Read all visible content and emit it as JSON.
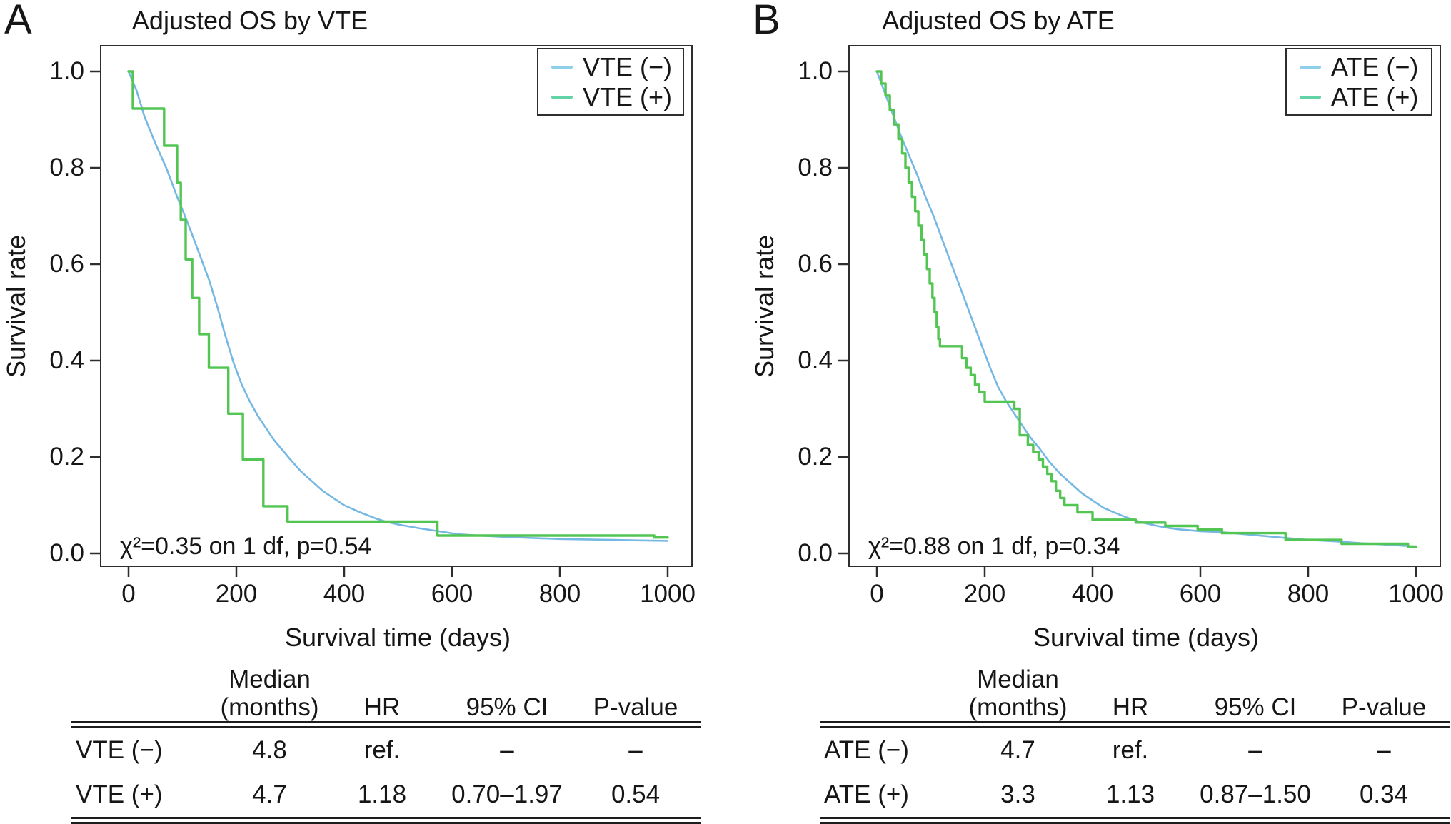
{
  "figure": {
    "background": "#ffffff",
    "axis_color": "#2e2e2e",
    "text_color": "#161616"
  },
  "chart_data": [
    {
      "type": "line",
      "panel_letter": "A",
      "title": "Adjusted OS by VTE",
      "xlabel": "Survival time (days)",
      "ylabel": "Survival rate",
      "xlim": [
        0,
        1000
      ],
      "ylim": [
        0,
        1
      ],
      "xticks": [
        0,
        200,
        400,
        600,
        800,
        1000
      ],
      "yticks": [
        "1.0",
        "0.8",
        "0.6",
        "0.4",
        "0.2",
        "0.0"
      ],
      "grid": false,
      "legend_position": "top-right",
      "stat_annotation": "χ²=0.35 on 1 df, p=0.54",
      "series": [
        {
          "name": "VTE (−)",
          "style": "smooth",
          "color": "#76b8e4",
          "legend_swatch_color": "#8ed0ea",
          "points": [
            [
              0,
              1.0
            ],
            [
              15,
              0.96
            ],
            [
              30,
              0.905
            ],
            [
              50,
              0.85
            ],
            [
              70,
              0.8
            ],
            [
              90,
              0.74
            ],
            [
              110,
              0.685
            ],
            [
              130,
              0.625
            ],
            [
              150,
              0.565
            ],
            [
              165,
              0.51
            ],
            [
              180,
              0.45
            ],
            [
              195,
              0.395
            ],
            [
              210,
              0.35
            ],
            [
              225,
              0.315
            ],
            [
              240,
              0.285
            ],
            [
              255,
              0.26
            ],
            [
              270,
              0.235
            ],
            [
              285,
              0.215
            ],
            [
              300,
              0.195
            ],
            [
              320,
              0.17
            ],
            [
              340,
              0.15
            ],
            [
              360,
              0.13
            ],
            [
              380,
              0.115
            ],
            [
              400,
              0.1
            ],
            [
              430,
              0.085
            ],
            [
              460,
              0.072
            ],
            [
              474,
              0.067
            ],
            [
              500,
              0.06
            ],
            [
              540,
              0.052
            ],
            [
              575,
              0.046
            ],
            [
              610,
              0.04
            ],
            [
              650,
              0.037
            ],
            [
              700,
              0.034
            ],
            [
              750,
              0.032
            ],
            [
              800,
              0.03
            ],
            [
              850,
              0.029
            ],
            [
              900,
              0.028
            ],
            [
              950,
              0.027
            ],
            [
              1000,
              0.026
            ]
          ]
        },
        {
          "name": "VTE (+)",
          "style": "step",
          "color": "#53c553",
          "legend_swatch_color": "#63d2a6",
          "points": [
            [
              0,
              1.0
            ],
            [
              8,
              0.923
            ],
            [
              66,
              0.846
            ],
            [
              90,
              0.769
            ],
            [
              97,
              0.692
            ],
            [
              106,
              0.61
            ],
            [
              118,
              0.53
            ],
            [
              131,
              0.455
            ],
            [
              149,
              0.385
            ],
            [
              185,
              0.29
            ],
            [
              212,
              0.195
            ],
            [
              250,
              0.098
            ],
            [
              295,
              0.066
            ],
            [
              573,
              0.037
            ],
            [
              975,
              0.033
            ]
          ]
        }
      ],
      "table": {
        "headers": [
          "",
          "Median\n(months)",
          "HR",
          "95% CI",
          "P-value"
        ],
        "rows": [
          [
            "VTE (−)",
            "4.8",
            "ref.",
            "–",
            "–"
          ],
          [
            "VTE (+)",
            "4.7",
            "1.18",
            "0.70–1.97",
            "0.54"
          ]
        ]
      }
    },
    {
      "type": "line",
      "panel_letter": "B",
      "title": "Adjusted OS by ATE",
      "xlabel": "Survival time (days)",
      "ylabel": "Survival rate",
      "xlim": [
        0,
        1000
      ],
      "ylim": [
        0,
        1
      ],
      "xticks": [
        0,
        200,
        400,
        600,
        800,
        1000
      ],
      "yticks": [
        "1.0",
        "0.8",
        "0.6",
        "0.4",
        "0.2",
        "0.0"
      ],
      "grid": false,
      "legend_position": "top-right",
      "stat_annotation": "χ²=0.88 on 1 df, p=0.34",
      "series": [
        {
          "name": "ATE (−)",
          "style": "smooth",
          "color": "#76b8e4",
          "legend_swatch_color": "#8ed0ea",
          "points": [
            [
              0,
              1.0
            ],
            [
              15,
              0.955
            ],
            [
              30,
              0.91
            ],
            [
              45,
              0.865
            ],
            [
              60,
              0.825
            ],
            [
              75,
              0.785
            ],
            [
              90,
              0.74
            ],
            [
              105,
              0.7
            ],
            [
              120,
              0.655
            ],
            [
              135,
              0.61
            ],
            [
              150,
              0.565
            ],
            [
              165,
              0.52
            ],
            [
              180,
              0.475
            ],
            [
              195,
              0.43
            ],
            [
              210,
              0.385
            ],
            [
              225,
              0.345
            ],
            [
              240,
              0.315
            ],
            [
              255,
              0.29
            ],
            [
              270,
              0.265
            ],
            [
              285,
              0.24
            ],
            [
              300,
              0.22
            ],
            [
              320,
              0.19
            ],
            [
              340,
              0.165
            ],
            [
              360,
              0.145
            ],
            [
              380,
              0.125
            ],
            [
              400,
              0.11
            ],
            [
              420,
              0.095
            ],
            [
              440,
              0.085
            ],
            [
              460,
              0.076
            ],
            [
              480,
              0.068
            ],
            [
              500,
              0.062
            ],
            [
              520,
              0.057
            ],
            [
              540,
              0.053
            ],
            [
              560,
              0.05
            ],
            [
              580,
              0.048
            ],
            [
              600,
              0.046
            ],
            [
              620,
              0.045
            ],
            [
              640,
              0.044
            ],
            [
              680,
              0.04
            ],
            [
              720,
              0.036
            ],
            [
              760,
              0.032
            ],
            [
              800,
              0.028
            ],
            [
              850,
              0.025
            ],
            [
              900,
              0.021
            ],
            [
              950,
              0.018
            ],
            [
              1000,
              0.014
            ]
          ]
        },
        {
          "name": "ATE (+)",
          "style": "step",
          "color": "#53c553",
          "legend_swatch_color": "#63d2a6",
          "points": [
            [
              0,
              1.0
            ],
            [
              8,
              0.975
            ],
            [
              16,
              0.95
            ],
            [
              24,
              0.92
            ],
            [
              32,
              0.89
            ],
            [
              40,
              0.86
            ],
            [
              47,
              0.83
            ],
            [
              53,
              0.8
            ],
            [
              59,
              0.77
            ],
            [
              65,
              0.74
            ],
            [
              71,
              0.71
            ],
            [
              77,
              0.68
            ],
            [
              83,
              0.65
            ],
            [
              88,
              0.62
            ],
            [
              93,
              0.59
            ],
            [
              98,
              0.56
            ],
            [
              103,
              0.53
            ],
            [
              107,
              0.5
            ],
            [
              111,
              0.47
            ],
            [
              114,
              0.445
            ],
            [
              117,
              0.43
            ],
            [
              158,
              0.405
            ],
            [
              166,
              0.385
            ],
            [
              174,
              0.37
            ],
            [
              182,
              0.35
            ],
            [
              190,
              0.335
            ],
            [
              200,
              0.315
            ],
            [
              255,
              0.3
            ],
            [
              265,
              0.245
            ],
            [
              280,
              0.225
            ],
            [
              290,
              0.21
            ],
            [
              300,
              0.195
            ],
            [
              308,
              0.18
            ],
            [
              316,
              0.165
            ],
            [
              324,
              0.15
            ],
            [
              332,
              0.13
            ],
            [
              340,
              0.115
            ],
            [
              348,
              0.1
            ],
            [
              372,
              0.085
            ],
            [
              400,
              0.07
            ],
            [
              480,
              0.064
            ],
            [
              535,
              0.057
            ],
            [
              595,
              0.05
            ],
            [
              640,
              0.042
            ],
            [
              758,
              0.028
            ],
            [
              862,
              0.02
            ],
            [
              985,
              0.014
            ]
          ]
        }
      ],
      "table": {
        "headers": [
          "",
          "Median\n(months)",
          "HR",
          "95% CI",
          "P-value"
        ],
        "rows": [
          [
            "ATE (−)",
            "4.7",
            "ref.",
            "–",
            "–"
          ],
          [
            "ATE (+)",
            "3.3",
            "1.13",
            "0.87–1.50",
            "0.34"
          ]
        ]
      }
    }
  ]
}
